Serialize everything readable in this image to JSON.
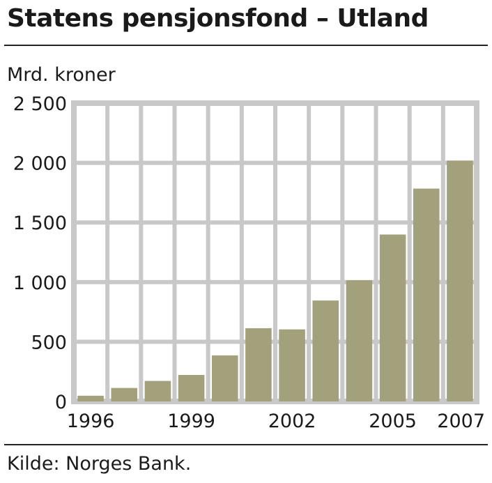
{
  "header": {
    "title": "Statens pensjonsfond – Utland"
  },
  "footer": {
    "source": "Kilde: Norges Bank."
  },
  "colors": {
    "bar": "#a3a07c",
    "grid": "#c8c8c8",
    "text": "#1a1a1a"
  },
  "chart_data": {
    "type": "bar",
    "title": "Statens pensjonsfond – Utland",
    "ylabel": "Mrd. kroner",
    "xlabel": "",
    "ylim": [
      0,
      2500
    ],
    "grid": true,
    "categories": [
      "1996",
      "1997",
      "1998",
      "1999",
      "2000",
      "2001",
      "2002",
      "2003",
      "2004",
      "2005",
      "2006",
      "2007"
    ],
    "x_tick_labels": [
      "1996",
      "",
      "",
      "1999",
      "",
      "",
      "2002",
      "",
      "",
      "2005",
      "",
      "2007"
    ],
    "y_ticks": [
      0,
      500,
      1000,
      1500,
      2000,
      2500
    ],
    "y_tick_labels": [
      "0",
      "500",
      "1 000",
      "1 500",
      "2 000",
      "2 500"
    ],
    "values": [
      48,
      113,
      172,
      222,
      386,
      614,
      604,
      846,
      1016,
      1399,
      1784,
      2019
    ]
  }
}
